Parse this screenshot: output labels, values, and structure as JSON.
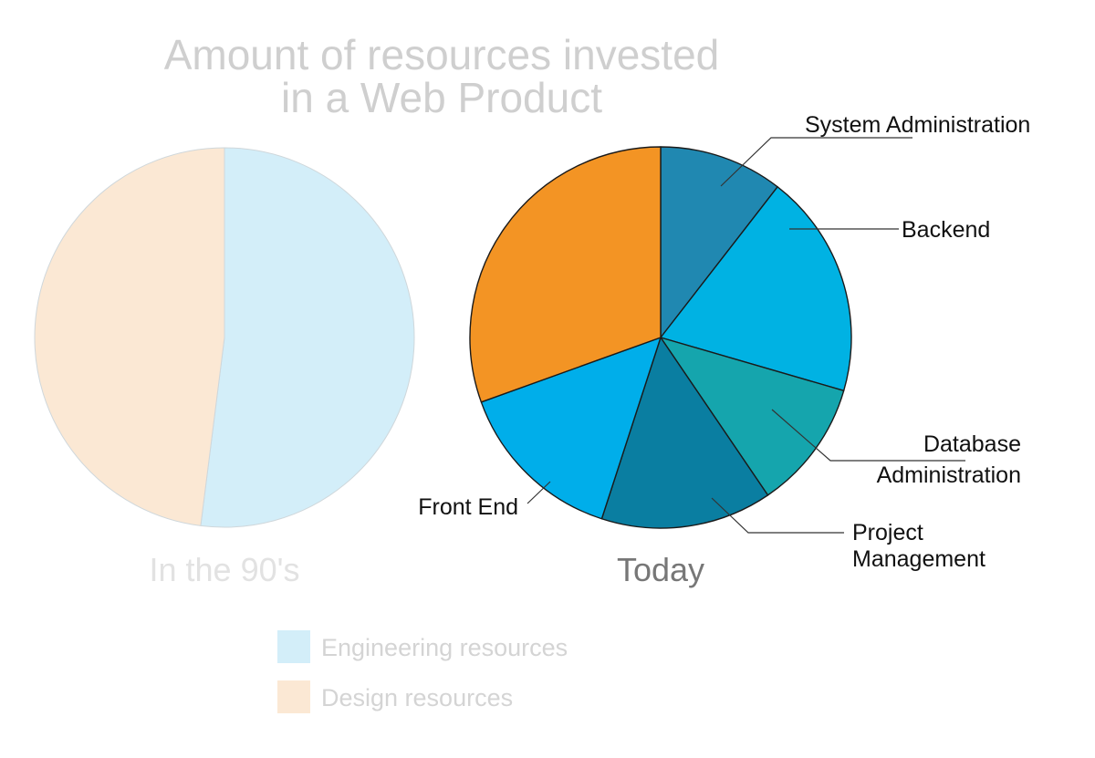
{
  "title_line1": "Amount of resources invested",
  "title_line2": "in a Web Product",
  "legend": [
    {
      "label": "Engineering resources",
      "color": "#d3eef9"
    },
    {
      "label": "Design resources",
      "color": "#fbe8d4"
    }
  ],
  "chart_data": [
    {
      "type": "pie",
      "caption": "In the 90's",
      "caption_color": "#e2e2e2",
      "slices": [
        {
          "name": "Engineering resources",
          "value": 52,
          "color": "#d3eef9"
        },
        {
          "name": "Design resources",
          "value": 48,
          "color": "#fbe8d4"
        }
      ]
    },
    {
      "type": "pie",
      "caption": "Today",
      "caption_color": "#777777",
      "slices": [
        {
          "name": "System Administration",
          "value": 10.5,
          "color": "#2088b1"
        },
        {
          "name": "Backend",
          "value": 19,
          "color": "#00b2e3"
        },
        {
          "name": "Database Administration",
          "value": 11,
          "color": "#15a5ad"
        },
        {
          "name": "Project Management",
          "value": 14.5,
          "color": "#0a7ea1"
        },
        {
          "name": "Front End",
          "value": 14.5,
          "color": "#00aeea"
        },
        {
          "name": "",
          "value": 30.5,
          "color": "#f39424"
        }
      ]
    }
  ],
  "callouts": {
    "system_admin": "System Administration",
    "backend": "Backend",
    "database_line1": "Database",
    "database_line2": "Administration",
    "project_line1": "Project",
    "project_line2": "Management",
    "front_end": "Front End"
  }
}
